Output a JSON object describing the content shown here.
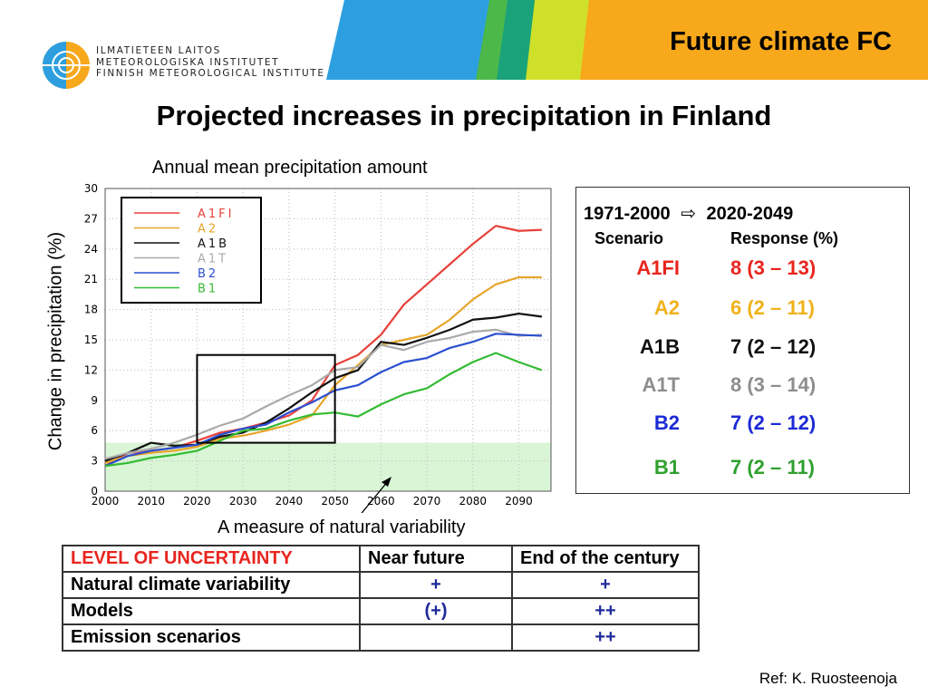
{
  "header": {
    "slide_title": "Future climate FC",
    "org_lines": [
      "ILMATIETEEN LAITOS",
      "METEOROLOGISKA INSTITUTET",
      "FINNISH METEOROLOGICAL INSTITUTE"
    ],
    "brand_colors": [
      "#2196d6",
      "#3aa54a",
      "#d7df23",
      "#f7a81b"
    ]
  },
  "page_title": "Projected increases in precipitation in Finland",
  "chart_data": {
    "type": "line",
    "title": "Annual mean precipitation amount",
    "xlabel": "",
    "ylabel": "Change in precipitation (%)",
    "xlim": [
      2000,
      2097
    ],
    "ylim": [
      0,
      30
    ],
    "xticks": [
      2000,
      2010,
      2020,
      2030,
      2040,
      2050,
      2060,
      2070,
      2080,
      2090
    ],
    "yticks": [
      0,
      3,
      6,
      9,
      12,
      15,
      18,
      21,
      24,
      27,
      30
    ],
    "grid": true,
    "legend_position": "top-left",
    "x": [
      2000,
      2005,
      2010,
      2015,
      2020,
      2025,
      2030,
      2035,
      2040,
      2045,
      2050,
      2055,
      2060,
      2065,
      2070,
      2075,
      2080,
      2085,
      2090,
      2095
    ],
    "series": [
      {
        "name": "A1FI",
        "color": "#e8413a",
        "values": [
          2.5,
          3.8,
          4.0,
          4.3,
          5.0,
          5.8,
          6.2,
          6.8,
          7.5,
          9.0,
          12.5,
          13.5,
          15.5,
          18.5,
          20.5,
          22.5,
          24.5,
          26.3,
          25.8,
          25.9
        ]
      },
      {
        "name": "A2",
        "color": "#e6a52a",
        "values": [
          2.8,
          3.5,
          3.8,
          4.0,
          4.4,
          5.2,
          5.5,
          6.0,
          6.6,
          7.5,
          10.5,
          12.5,
          14.5,
          15.0,
          15.5,
          17.0,
          19.0,
          20.5,
          21.2,
          21.2
        ]
      },
      {
        "name": "A1B",
        "color": "#111111",
        "values": [
          3.0,
          3.8,
          4.8,
          4.5,
          4.6,
          5.4,
          5.8,
          6.8,
          8.2,
          9.8,
          11.2,
          12.0,
          14.8,
          14.5,
          15.2,
          16.0,
          17.0,
          17.2,
          17.6,
          17.3
        ]
      },
      {
        "name": "A1T",
        "color": "#aaaaaa",
        "values": [
          3.2,
          3.8,
          4.2,
          4.8,
          5.6,
          6.5,
          7.2,
          8.4,
          9.5,
          10.5,
          12.0,
          12.3,
          14.5,
          14.0,
          14.8,
          15.2,
          15.8,
          16.0,
          15.4,
          15.5
        ]
      },
      {
        "name": "B2",
        "color": "#2b4fd0",
        "values": [
          2.5,
          3.5,
          4.0,
          4.3,
          4.6,
          5.6,
          6.2,
          6.6,
          7.8,
          8.8,
          10.0,
          10.5,
          11.8,
          12.8,
          13.2,
          14.2,
          14.8,
          15.6,
          15.5,
          15.4
        ]
      },
      {
        "name": "B1",
        "color": "#33bb33",
        "values": [
          2.5,
          2.8,
          3.3,
          3.6,
          4.0,
          5.0,
          6.0,
          6.2,
          7.0,
          7.6,
          7.8,
          7.4,
          8.6,
          9.6,
          10.2,
          11.6,
          12.8,
          13.7,
          12.8,
          12.0
        ]
      }
    ],
    "natural_variability_band": [
      0,
      4.8
    ],
    "highlight_box": {
      "x": [
        2020,
        2050
      ],
      "y": [
        4.8,
        13.5
      ]
    },
    "annotation": "A measure of natural variability"
  },
  "scenario_panel": {
    "from_period": "1971-2000",
    "to_period": "2020-2049",
    "col_scenario": "Scenario",
    "col_response": "Response (%)",
    "rows": [
      {
        "name": "A1FI",
        "response": "8 (3 – 13)",
        "color": "#e8251e"
      },
      {
        "name": "A2",
        "response": "6 (2 – 11)",
        "color": "#f0b21a"
      },
      {
        "name": "A1B",
        "response": "7 (2 – 12)",
        "color": "#111111"
      },
      {
        "name": "A1T",
        "response": "8 (3 – 14)",
        "color": "#8e8e8e"
      },
      {
        "name": "B2",
        "response": "7 (2 – 12)",
        "color": "#1c2ad6"
      },
      {
        "name": "B1",
        "response": "7 (2 – 11)",
        "color": "#2ea02e"
      }
    ]
  },
  "uncertainty_table": {
    "header": {
      "level": "LEVEL OF UNCERTAINTY",
      "near": "Near future",
      "end": "End of the century"
    },
    "rows": [
      {
        "label": "Natural climate variability",
        "near": "+",
        "end": "+"
      },
      {
        "label": "Models",
        "near": "(+)",
        "end": "++"
      },
      {
        "label": "Emission scenarios",
        "near": "",
        "end": "++"
      }
    ],
    "header_color": "#e8251e"
  },
  "reference": "Ref: K. Ruosteenoja"
}
